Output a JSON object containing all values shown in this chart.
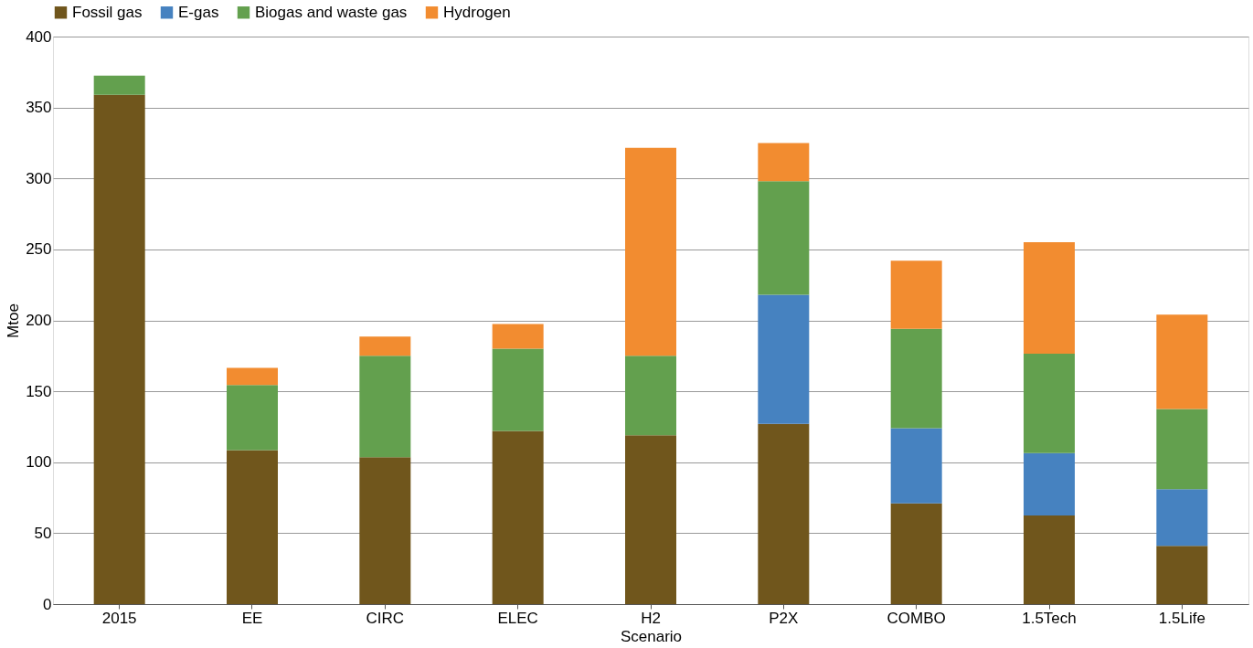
{
  "chart_data": {
    "type": "bar",
    "stacked": true,
    "xlabel": "Scenario",
    "ylabel": "Mtoe",
    "categories": [
      "2015",
      "EE",
      "CIRC",
      "ELEC",
      "H2",
      "P2X",
      "COMBO",
      "1.5Tech",
      "1.5Life"
    ],
    "series": [
      {
        "name": "Fossil gas",
        "color": "#70561c",
        "values": [
          359,
          108.5,
          103.5,
          122,
          119,
          127,
          71,
          62.5,
          41
        ]
      },
      {
        "name": "E-gas",
        "color": "#4682c0",
        "values": [
          0,
          0,
          0,
          0,
          0,
          91,
          53,
          44,
          40
        ]
      },
      {
        "name": "Biogas and waste gas",
        "color": "#63a04e",
        "values": [
          13.5,
          46,
          71.5,
          58,
          56,
          80,
          70,
          70,
          56.5
        ]
      },
      {
        "name": "Hydrogen",
        "color": "#f28c30",
        "values": [
          0,
          12,
          13.5,
          17.5,
          146.5,
          27,
          48,
          78.5,
          66.5
        ]
      }
    ],
    "ylim": [
      0,
      400
    ],
    "yticks": [
      0,
      50,
      100,
      150,
      200,
      250,
      300,
      350,
      400
    ],
    "grid": "y",
    "legend": "top"
  }
}
